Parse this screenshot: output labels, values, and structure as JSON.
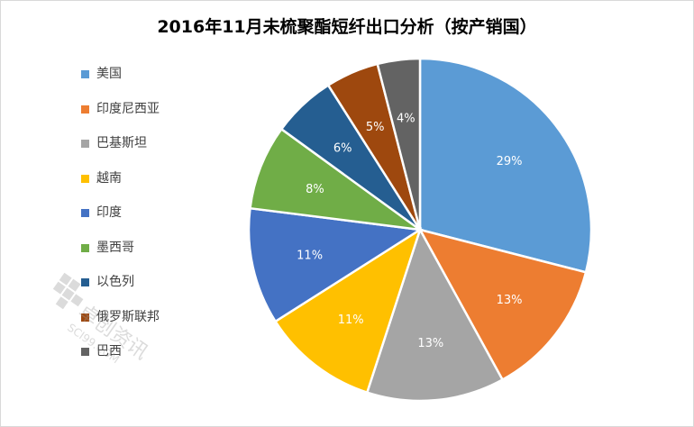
{
  "chart_data": {
    "type": "pie",
    "title": "2016年11月未梳聚酯短纤出口分析（按产销国）",
    "categories": [
      "美国",
      "印度尼西亚",
      "巴基斯坦",
      "越南",
      "印度",
      "墨西哥",
      "以色列",
      "俄罗斯联邦",
      "巴西"
    ],
    "values": [
      29,
      13,
      13,
      11,
      11,
      8,
      6,
      5,
      4
    ],
    "labels": [
      "29%",
      "13%",
      "13%",
      "11%",
      "11%",
      "8%",
      "6%",
      "5%",
      "4%"
    ],
    "colors": [
      "#5B9BD5",
      "#ED7D31",
      "#A5A5A5",
      "#FFC000",
      "#4472C4",
      "#70AD47",
      "#255E91",
      "#9E480E",
      "#636363"
    ],
    "legend_position": "left"
  },
  "watermark": {
    "text": "卓创资讯",
    "url_text": "SCI99.COM"
  }
}
